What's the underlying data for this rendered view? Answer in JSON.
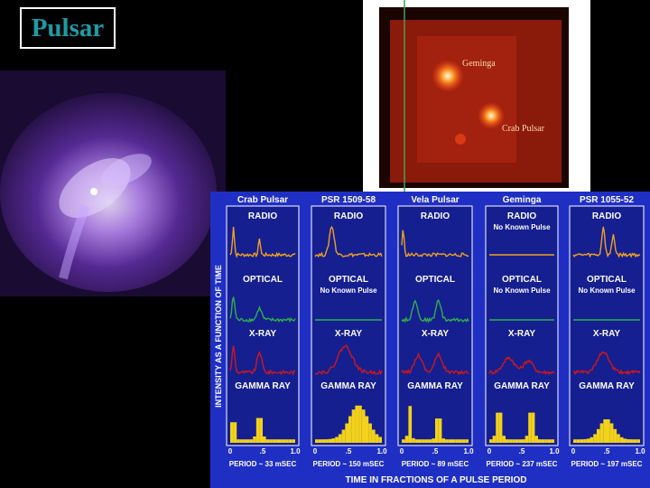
{
  "slide": {
    "title": "Pulsar"
  },
  "sky_image": {
    "labels": [
      "Geminga",
      "Crab Pulsar"
    ]
  },
  "pulse_profiles": {
    "y_axis_label": "INTENSITY AS A FUNCTION OF TIME",
    "x_axis_label": "TIME IN FRACTIONS OF A PULSE PERIOD",
    "axis_ticks": [
      "0",
      ".5",
      "1.0"
    ],
    "pulsars": [
      {
        "name": "Crab Pulsar",
        "period": "PERIOD ~ 33 mSEC",
        "bands": [
          {
            "label": "RADIO",
            "note": ""
          },
          {
            "label": "OPTICAL",
            "note": ""
          },
          {
            "label": "X-RAY",
            "note": ""
          },
          {
            "label": "GAMMA RAY",
            "note": ""
          }
        ]
      },
      {
        "name": "PSR 1509-58",
        "period": "PERIOD ~ 150 mSEC",
        "bands": [
          {
            "label": "RADIO",
            "note": ""
          },
          {
            "label": "OPTICAL",
            "note": "No Known Pulse"
          },
          {
            "label": "X-RAY",
            "note": ""
          },
          {
            "label": "GAMMA RAY",
            "note": ""
          }
        ]
      },
      {
        "name": "Vela Pulsar",
        "period": "PERIOD ~ 89 mSEC",
        "bands": [
          {
            "label": "RADIO",
            "note": ""
          },
          {
            "label": "OPTICAL",
            "note": ""
          },
          {
            "label": "X-RAY",
            "note": ""
          },
          {
            "label": "GAMMA RAY",
            "note": ""
          }
        ]
      },
      {
        "name": "Geminga",
        "period": "PERIOD ~ 237 mSEC",
        "bands": [
          {
            "label": "RADIO",
            "note": "No Known Pulse"
          },
          {
            "label": "OPTICAL",
            "note": "No Known Pulse"
          },
          {
            "label": "X-RAY",
            "note": ""
          },
          {
            "label": "GAMMA RAY",
            "note": ""
          }
        ]
      },
      {
        "name": "PSR 1055-52",
        "period": "PERIOD ~ 197 mSEC",
        "bands": [
          {
            "label": "RADIO",
            "note": ""
          },
          {
            "label": "OPTICAL",
            "note": "No Known Pulse"
          },
          {
            "label": "X-RAY",
            "note": ""
          },
          {
            "label": "GAMMA RAY",
            "note": ""
          }
        ]
      }
    ]
  },
  "colors": {
    "panel_bg": "#1f2fc4",
    "radio": "#f0a020",
    "optical": "#2fb04a",
    "xray": "#d01818",
    "gamma": "#f2d21a",
    "title_text": "#1f9aa6"
  }
}
